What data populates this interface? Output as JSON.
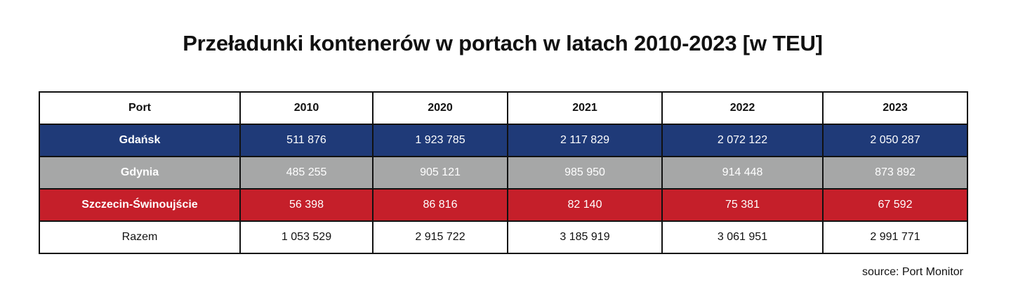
{
  "title": "Przeładunki kontenerów w portach w latach 2010-2023 [w TEU]",
  "source": "source: Port Monitor",
  "colors": {
    "gdansk": "#1f3a78",
    "gdynia": "#a6a7a7",
    "szczecin": "#c51f2a",
    "total": "#ffffff",
    "border": "#111111"
  },
  "chart_data": {
    "type": "table",
    "title": "Przeładunki kontenerów w portach w latach 2010-2023 [w TEU]",
    "headers": [
      "Port",
      "2010",
      "2020",
      "2021",
      "2022",
      "2023"
    ],
    "rows": [
      {
        "port": "Gdańsk",
        "values": [
          "511 876",
          "1 923 785",
          "2 117 829",
          "2 072 122",
          "2 050 287"
        ]
      },
      {
        "port": "Gdynia",
        "values": [
          "485 255",
          "905 121",
          "985 950",
          "914 448",
          "873 892"
        ]
      },
      {
        "port": "Szczecin-Świnoujście",
        "values": [
          "56 398",
          "86 816",
          "82 140",
          "75 381",
          "67 592"
        ]
      },
      {
        "port": "Razem",
        "values": [
          "1 053 529",
          "2 915 722",
          "3 185 919",
          "3 061 951",
          "2 991 771"
        ]
      }
    ]
  }
}
